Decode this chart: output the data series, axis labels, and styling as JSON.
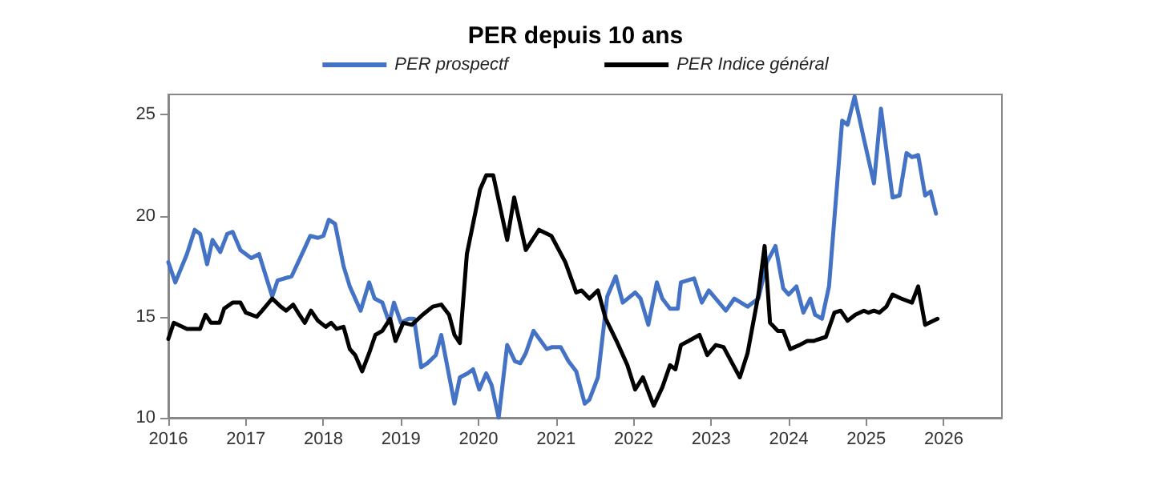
{
  "chart_data": {
    "type": "line",
    "title": "PER depuis 10 ans",
    "xlim": [
      2016,
      2026.75
    ],
    "xticks": [
      2016,
      2017,
      2018,
      2019,
      2020,
      2021,
      2022,
      2023,
      2024,
      2025,
      2026
    ],
    "ylim": [
      10,
      26
    ],
    "yticks": [
      10,
      15,
      20,
      25
    ],
    "grid": false,
    "legend": "top",
    "marker": "none",
    "line_style": "solid",
    "series": [
      {
        "name": "PER prospectf",
        "color": "#4472c4",
        "x": [
          2016.0,
          2016.09,
          2016.24,
          2016.34,
          2016.41,
          2016.5,
          2016.57,
          2016.67,
          2016.76,
          2016.83,
          2016.93,
          2017.07,
          2017.17,
          2017.34,
          2017.41,
          2017.59,
          2017.76,
          2017.83,
          2017.93,
          2018.0,
          2018.07,
          2018.15,
          2018.26,
          2018.34,
          2018.48,
          2018.59,
          2018.66,
          2018.76,
          2018.85,
          2018.91,
          2019.0,
          2019.1,
          2019.17,
          2019.26,
          2019.34,
          2019.45,
          2019.52,
          2019.69,
          2019.76,
          2019.86,
          2019.93,
          2020.01,
          2020.1,
          2020.17,
          2020.26,
          2020.37,
          2020.47,
          2020.54,
          2020.61,
          2020.71,
          2020.88,
          2020.95,
          2021.06,
          2021.16,
          2021.26,
          2021.37,
          2021.43,
          2021.54,
          2021.66,
          2021.77,
          2021.86,
          2022.02,
          2022.09,
          2022.19,
          2022.3,
          2022.37,
          2022.47,
          2022.57,
          2022.61,
          2022.78,
          2022.88,
          2022.97,
          2023.19,
          2023.3,
          2023.47,
          2023.61,
          2023.72,
          2023.83,
          2023.93,
          2024.0,
          2024.1,
          2024.19,
          2024.28,
          2024.34,
          2024.43,
          2024.52,
          2024.69,
          2024.76,
          2024.85,
          2024.97,
          2025.1,
          2025.19,
          2025.34,
          2025.43,
          2025.52,
          2025.59,
          2025.67,
          2025.76,
          2025.83,
          2025.9
        ],
        "values": [
          17.7,
          16.7,
          18.1,
          19.3,
          19.1,
          17.6,
          18.8,
          18.2,
          19.1,
          19.2,
          18.3,
          17.9,
          18.1,
          16.0,
          16.8,
          17.0,
          18.4,
          19.0,
          18.9,
          19.0,
          19.8,
          19.6,
          17.5,
          16.5,
          15.3,
          16.7,
          15.9,
          15.7,
          14.7,
          15.7,
          14.7,
          14.9,
          14.9,
          12.5,
          12.7,
          13.1,
          14.1,
          10.7,
          12.0,
          12.2,
          12.4,
          11.4,
          12.2,
          11.6,
          10.0,
          13.6,
          12.8,
          12.7,
          13.2,
          14.3,
          13.4,
          13.5,
          13.5,
          12.8,
          12.3,
          10.7,
          10.9,
          12.0,
          16.0,
          17.0,
          15.7,
          16.2,
          15.9,
          14.6,
          16.7,
          15.9,
          15.4,
          15.4,
          16.7,
          16.9,
          15.7,
          16.3,
          15.3,
          15.9,
          15.5,
          15.9,
          17.7,
          18.5,
          16.4,
          16.1,
          16.5,
          15.2,
          15.9,
          15.1,
          14.9,
          16.5,
          24.7,
          24.5,
          25.9,
          23.8,
          21.6,
          25.3,
          20.9,
          21.0,
          23.1,
          22.9,
          23.0,
          21.0,
          21.2,
          20.1
        ]
      },
      {
        "name": "PER Indice général",
        "color": "#000000",
        "x": [
          2016.0,
          2016.07,
          2016.24,
          2016.41,
          2016.48,
          2016.55,
          2016.66,
          2016.72,
          2016.83,
          2016.93,
          2017.0,
          2017.14,
          2017.21,
          2017.34,
          2017.45,
          2017.52,
          2017.61,
          2017.69,
          2017.76,
          2017.84,
          2017.93,
          2018.03,
          2018.1,
          2018.17,
          2018.26,
          2018.34,
          2018.41,
          2018.5,
          2018.59,
          2018.67,
          2018.76,
          2018.86,
          2018.93,
          2019.03,
          2019.14,
          2019.28,
          2019.41,
          2019.52,
          2019.62,
          2019.69,
          2019.76,
          2019.85,
          2019.93,
          2020.02,
          2020.1,
          2020.19,
          2020.37,
          2020.46,
          2020.61,
          2020.78,
          2020.94,
          2021.12,
          2021.26,
          2021.33,
          2021.43,
          2021.54,
          2021.64,
          2021.78,
          2021.92,
          2022.02,
          2022.12,
          2022.26,
          2022.37,
          2022.47,
          2022.54,
          2022.61,
          2022.71,
          2022.85,
          2022.95,
          2023.06,
          2023.16,
          2023.37,
          2023.47,
          2023.61,
          2023.69,
          2023.76,
          2023.86,
          2023.93,
          2024.02,
          2024.14,
          2024.24,
          2024.32,
          2024.48,
          2024.59,
          2024.67,
          2024.76,
          2024.86,
          2024.97,
          2025.03,
          2025.1,
          2025.17,
          2025.26,
          2025.34,
          2025.45,
          2025.59,
          2025.67,
          2025.76,
          2025.92
        ],
        "values": [
          13.9,
          14.7,
          14.4,
          14.4,
          15.1,
          14.7,
          14.7,
          15.4,
          15.7,
          15.7,
          15.2,
          15.0,
          15.3,
          15.9,
          15.5,
          15.3,
          15.6,
          15.1,
          14.7,
          15.3,
          14.8,
          14.5,
          14.7,
          14.4,
          14.5,
          13.4,
          13.1,
          12.3,
          13.2,
          14.1,
          14.3,
          14.9,
          13.8,
          14.7,
          14.6,
          15.1,
          15.5,
          15.6,
          15.1,
          14.1,
          13.7,
          18.1,
          19.6,
          21.3,
          22.0,
          22.0,
          18.8,
          20.9,
          18.3,
          19.3,
          19.0,
          17.7,
          16.2,
          16.3,
          15.9,
          16.3,
          14.9,
          13.8,
          12.6,
          11.4,
          12.0,
          10.6,
          11.5,
          12.6,
          12.4,
          13.6,
          13.8,
          14.1,
          13.1,
          13.6,
          13.5,
          12.0,
          13.2,
          16.1,
          18.5,
          14.7,
          14.3,
          14.3,
          13.4,
          13.6,
          13.8,
          13.8,
          14.0,
          15.2,
          15.3,
          14.8,
          15.1,
          15.3,
          15.2,
          15.3,
          15.2,
          15.5,
          16.1,
          15.9,
          15.7,
          16.5,
          14.6,
          14.9
        ]
      }
    ]
  }
}
